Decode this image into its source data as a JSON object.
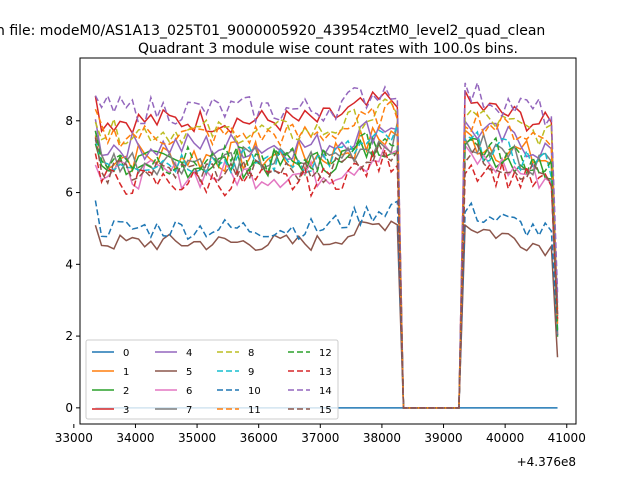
{
  "figure": {
    "suptitle": "n file: modeM0/AS1A13_025T01_9000005920_43954cztM0_level2_quad_clean"
  },
  "chart_data": {
    "type": "line",
    "title": "Quadrant 3 module wise count rates with 100.0s bins.",
    "xlabel": "",
    "ylabel": "",
    "x_offset_label": "+4.376e8",
    "xlim": [
      33100,
      41150
    ],
    "ylim": [
      -0.45,
      9.75
    ],
    "x_ticks": [
      {
        "value": 33000,
        "label": "33000"
      },
      {
        "value": 34000,
        "label": "34000"
      },
      {
        "value": 35000,
        "label": "35000"
      },
      {
        "value": 36000,
        "label": "36000"
      },
      {
        "value": 37000,
        "label": "37000"
      },
      {
        "value": 38000,
        "label": "38000"
      },
      {
        "value": 39000,
        "label": "39000"
      },
      {
        "value": 40000,
        "label": "40000"
      },
      {
        "value": 41000,
        "label": "41000"
      }
    ],
    "y_ticks": [
      {
        "value": 0,
        "label": "0"
      },
      {
        "value": 2,
        "label": "2"
      },
      {
        "value": 4,
        "label": "4"
      },
      {
        "value": 6,
        "label": "6"
      },
      {
        "value": 8,
        "label": "8"
      }
    ],
    "grid": false,
    "legend_position": "lower-left",
    "legend_columns": 4,
    "x": {
      "seg1_start": 33350,
      "seg1_end": 38250,
      "gap_start": 38350,
      "gap_end": 39250,
      "seg2_start": 39350,
      "seg2_end": 40850,
      "step": 100
    },
    "series": [
      {
        "name": "0",
        "color": "#1f77b4",
        "dash": "solid",
        "level": 0.0,
        "spread": 0.0
      },
      {
        "name": "1",
        "color": "#ff7f0e",
        "dash": "solid",
        "level": 7.0,
        "spread": 0.45
      },
      {
        "name": "2",
        "color": "#2ca02c",
        "dash": "solid",
        "level": 6.8,
        "spread": 0.4
      },
      {
        "name": "3",
        "color": "#d62728",
        "dash": "solid",
        "level": 8.0,
        "spread": 0.35
      },
      {
        "name": "4",
        "color": "#9467bd",
        "dash": "solid",
        "level": 7.3,
        "spread": 0.4
      },
      {
        "name": "5",
        "color": "#8c564b",
        "dash": "solid",
        "level": 4.6,
        "spread": 0.25
      },
      {
        "name": "6",
        "color": "#e377c2",
        "dash": "solid",
        "level": 6.5,
        "spread": 0.4
      },
      {
        "name": "7",
        "color": "#7f7f7f",
        "dash": "solid",
        "level": 6.9,
        "spread": 0.4
      },
      {
        "name": "8",
        "color": "#bcbd22",
        "dash": "dashed",
        "level": 7.7,
        "spread": 0.35
      },
      {
        "name": "9",
        "color": "#17becf",
        "dash": "dashed",
        "level": 6.9,
        "spread": 0.4
      },
      {
        "name": "10",
        "color": "#1f77b4",
        "dash": "dashed",
        "level": 5.0,
        "spread": 0.3
      },
      {
        "name": "11",
        "color": "#ff7f0e",
        "dash": "dashed",
        "level": 7.6,
        "spread": 0.35
      },
      {
        "name": "12",
        "color": "#2ca02c",
        "dash": "dashed",
        "level": 6.9,
        "spread": 0.4
      },
      {
        "name": "13",
        "color": "#d62728",
        "dash": "dashed",
        "level": 6.3,
        "spread": 0.4
      },
      {
        "name": "14",
        "color": "#9467bd",
        "dash": "dashed",
        "level": 8.3,
        "spread": 0.4
      },
      {
        "name": "15",
        "color": "#8c564b",
        "dash": "dashed",
        "level": 6.6,
        "spread": 0.35
      }
    ]
  }
}
